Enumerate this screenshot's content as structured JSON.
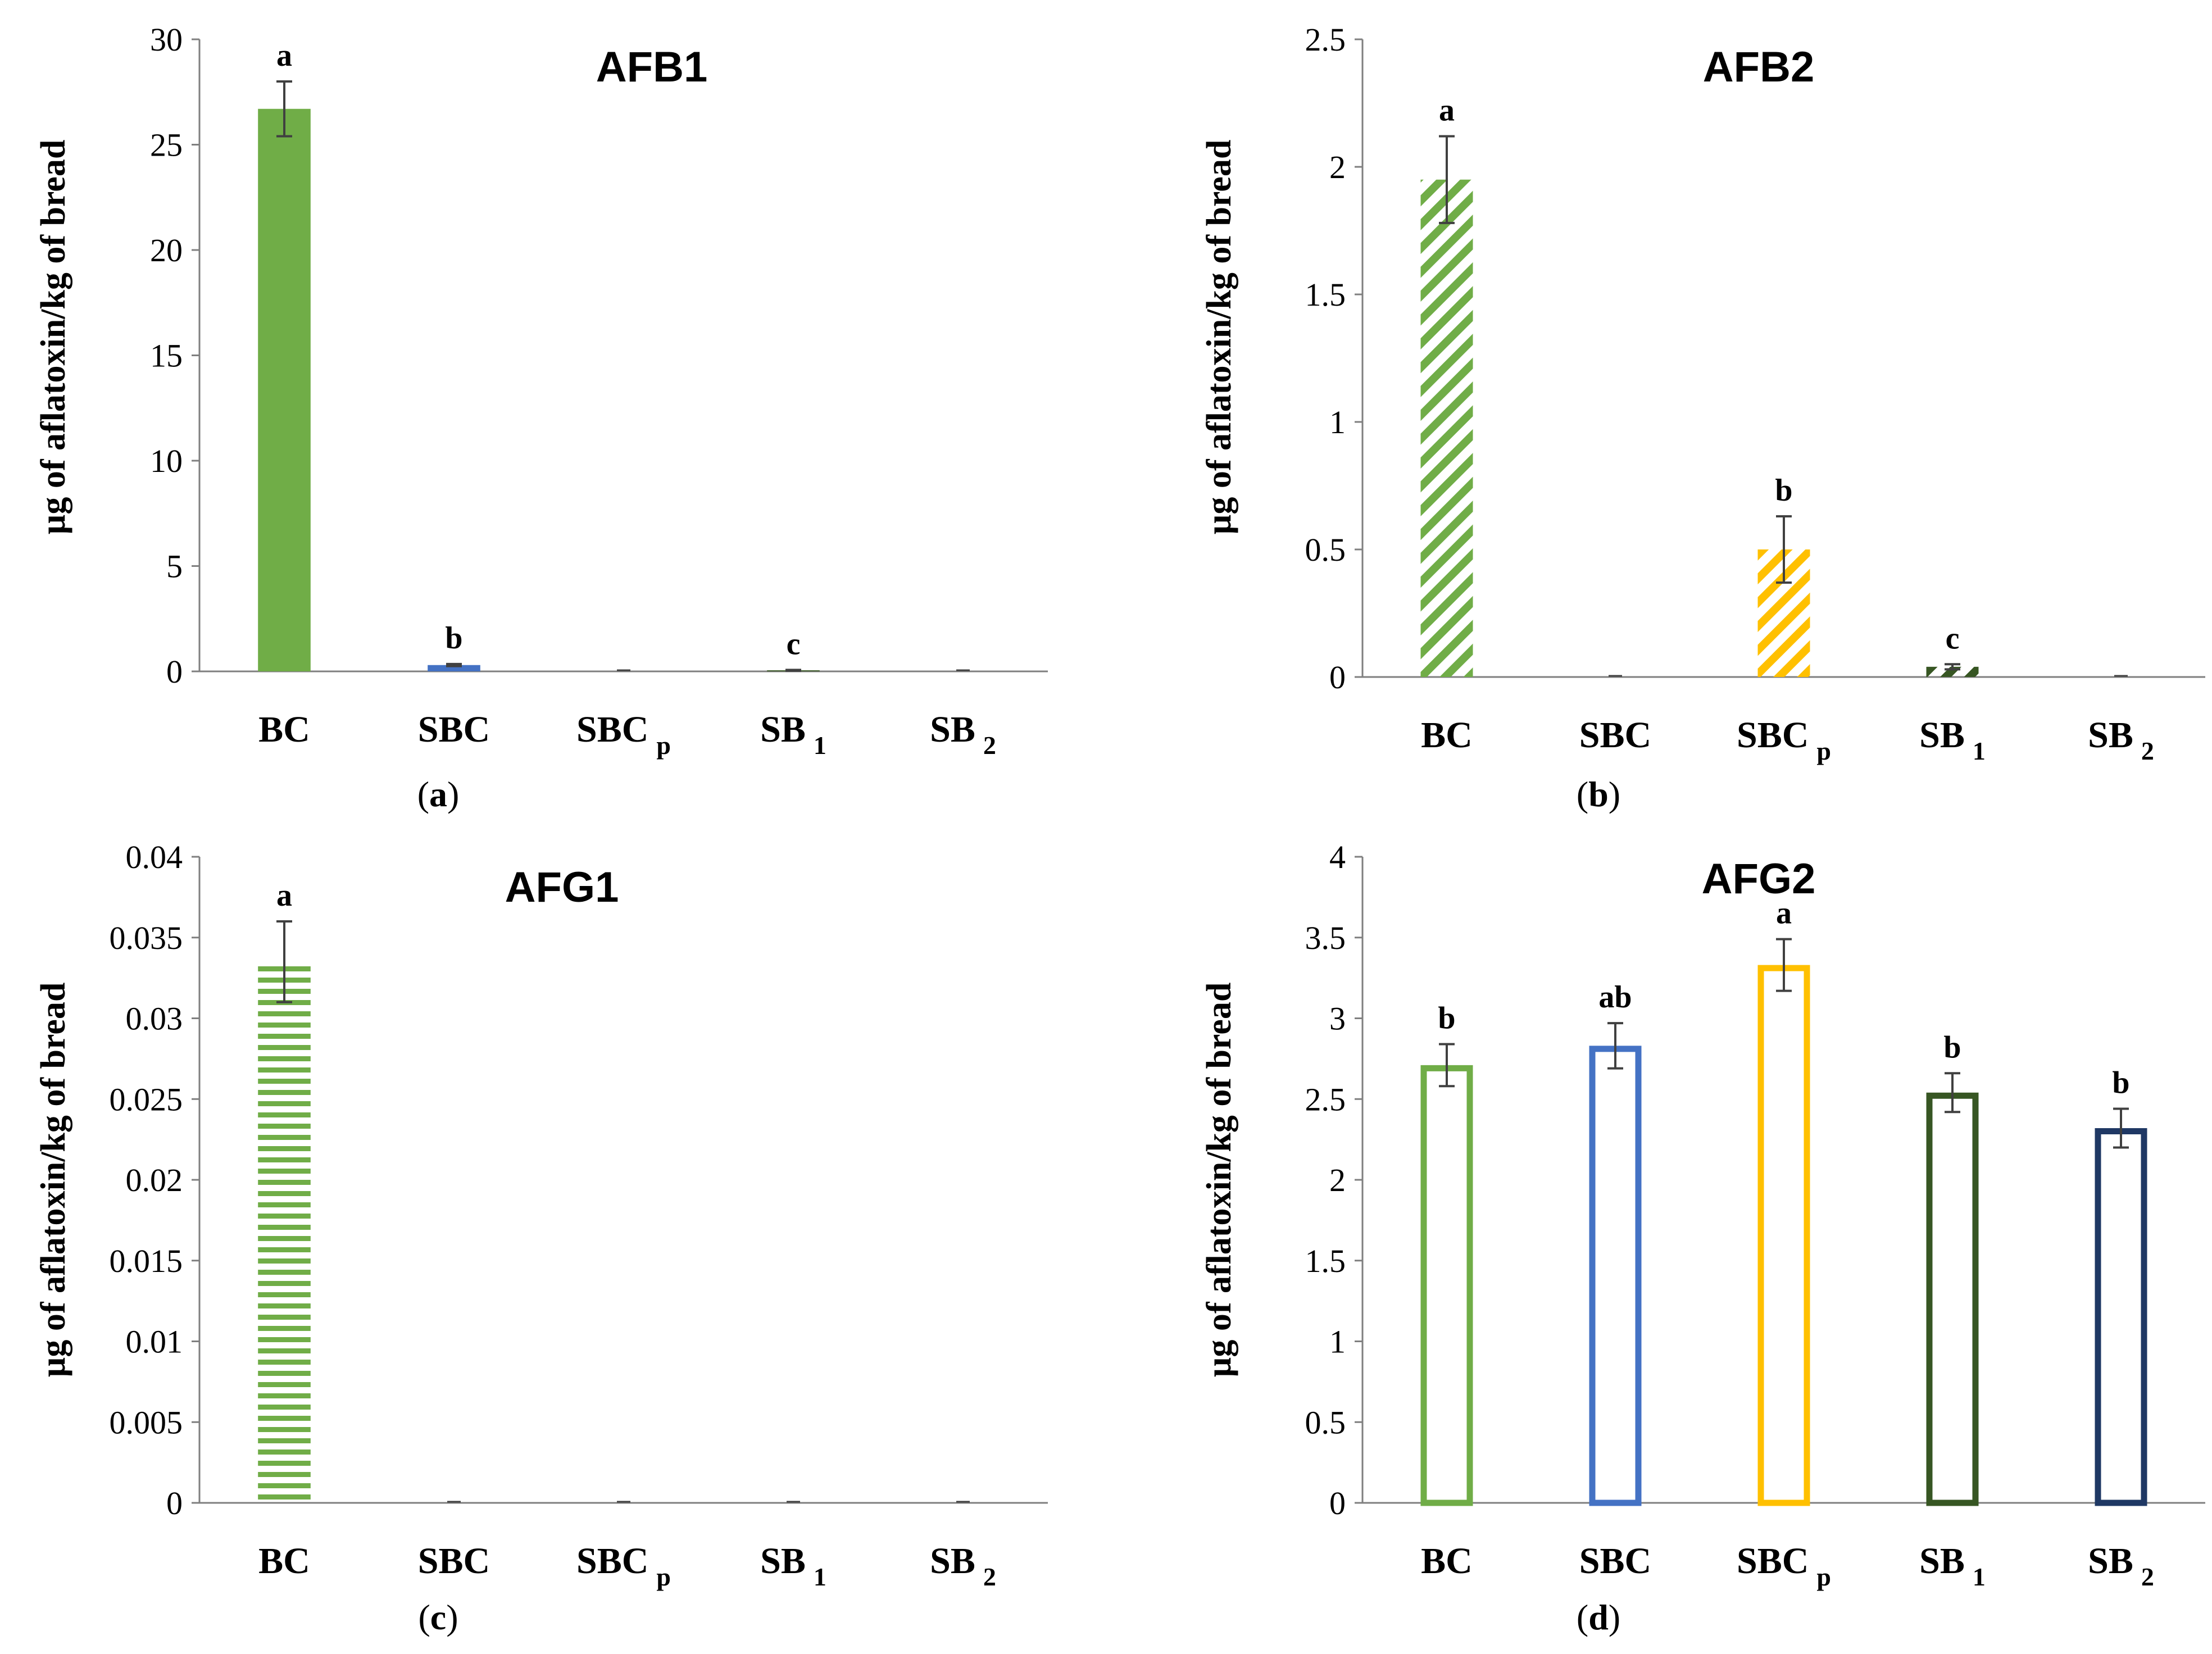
{
  "chart_data": [
    {
      "type": "bar",
      "panel": "a",
      "title": "AFB1",
      "ylabel": "µg of aflatoxin/kg of bread",
      "xlabel": "",
      "categories": [
        {
          "main": "BC",
          "sub": ""
        },
        {
          "main": "SBC",
          "sub": ""
        },
        {
          "main": "SBC",
          "sub": "p"
        },
        {
          "main": "SB",
          "sub": "1"
        },
        {
          "main": "SB",
          "sub": "2"
        }
      ],
      "values": [
        26.7,
        0.3,
        0,
        0.05,
        0
      ],
      "errors": [
        1.3,
        0.05,
        0,
        0.02,
        0
      ],
      "significance": [
        "a",
        "b",
        "",
        "c",
        ""
      ],
      "ylim": [
        0,
        30
      ],
      "yticks": [
        "0",
        "5",
        "10",
        "15",
        "20",
        "25",
        "30"
      ],
      "fill_style": "solid",
      "colors": [
        "#70ad47",
        "#4472c4",
        "#ffc000",
        "#375623",
        "#1f3864"
      ]
    },
    {
      "type": "bar",
      "panel": "b",
      "title": "AFB2",
      "ylabel": "µg of aflatoxin/kg of bread",
      "xlabel": "",
      "categories": [
        {
          "main": "BC",
          "sub": ""
        },
        {
          "main": "SBC",
          "sub": ""
        },
        {
          "main": "SBC",
          "sub": "p"
        },
        {
          "main": "SB",
          "sub": "1"
        },
        {
          "main": "SB",
          "sub": "2"
        }
      ],
      "values": [
        1.95,
        0,
        0.5,
        0.04,
        0
      ],
      "errors": [
        0.17,
        0,
        0.13,
        0.01,
        0
      ],
      "significance": [
        "a",
        "",
        "b",
        "c",
        ""
      ],
      "ylim": [
        0,
        2.5
      ],
      "yticks": [
        "0",
        "0.5",
        "1",
        "1.5",
        "2",
        "2.5"
      ],
      "fill_style": "diagonal",
      "colors": [
        "#70ad47",
        "#4472c4",
        "#ffc000",
        "#375623",
        "#1f3864"
      ]
    },
    {
      "type": "bar",
      "panel": "c",
      "title": "AFG1",
      "ylabel": "µg of aflatoxin/kg of bread",
      "xlabel": "",
      "categories": [
        {
          "main": "BC",
          "sub": ""
        },
        {
          "main": "SBC",
          "sub": ""
        },
        {
          "main": "SBC",
          "sub": "p"
        },
        {
          "main": "SB",
          "sub": "1"
        },
        {
          "main": "SB",
          "sub": "2"
        }
      ],
      "values": [
        0.0335,
        0,
        0,
        0,
        0
      ],
      "errors": [
        0.0025,
        0,
        0,
        0,
        0
      ],
      "significance": [
        "a",
        "",
        "",
        "",
        ""
      ],
      "ylim": [
        0,
        0.04
      ],
      "yticks": [
        "0",
        "0.005",
        "0.01",
        "0.015",
        "0.02",
        "0.025",
        "0.03",
        "0.035",
        "0.04"
      ],
      "fill_style": "horizontal",
      "colors": [
        "#70ad47",
        "#4472c4",
        "#ffc000",
        "#375623",
        "#1f3864"
      ]
    },
    {
      "type": "bar",
      "panel": "d",
      "title": "AFG2",
      "ylabel": "µg of aflatoxin/kg of bread",
      "xlabel": "",
      "categories": [
        {
          "main": "BC",
          "sub": ""
        },
        {
          "main": "SBC",
          "sub": ""
        },
        {
          "main": "SBC",
          "sub": "p"
        },
        {
          "main": "SB",
          "sub": "1"
        },
        {
          "main": "SB",
          "sub": "2"
        }
      ],
      "values": [
        2.71,
        2.83,
        3.33,
        2.54,
        2.32
      ],
      "errors": [
        0.13,
        0.14,
        0.16,
        0.12,
        0.12
      ],
      "significance": [
        "b",
        "ab",
        "a",
        "b",
        "b"
      ],
      "ylim": [
        0,
        4
      ],
      "yticks": [
        "0",
        "0.5",
        "1",
        "1.5",
        "2",
        "2.5",
        "3",
        "3.5",
        "4"
      ],
      "fill_style": "outline",
      "colors": [
        "#70ad47",
        "#4472c4",
        "#ffc000",
        "#375623",
        "#1f3864"
      ]
    }
  ]
}
